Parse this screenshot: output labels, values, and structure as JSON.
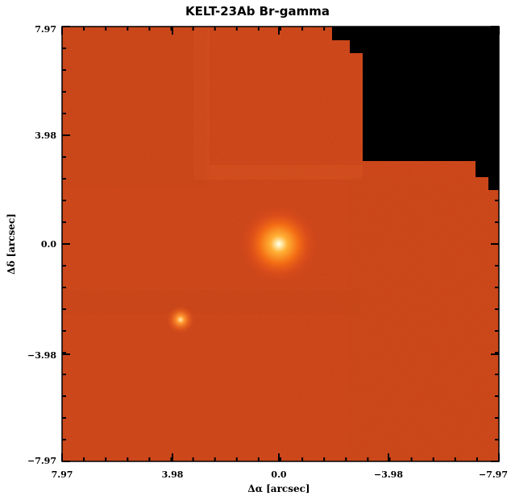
{
  "figure": {
    "title": "KELT-23Ab Br-gamma",
    "xlabel": "Δα [arcsec]",
    "ylabel": "Δδ [arcsec]"
  },
  "axes": {
    "x_ticks": [
      "7.97",
      "3.98",
      "0.0",
      "−3.98",
      "−7.97"
    ],
    "y_ticks": [
      "7.97",
      "3.98",
      "0.0",
      "−3.98",
      "−7.97"
    ],
    "x_range": [
      7.97,
      -7.97
    ],
    "y_range": [
      -7.97,
      7.97
    ]
  },
  "image": {
    "colormap": "red-orange-yellow (heat)",
    "sources": [
      {
        "name": "primary-star",
        "x": 0.0,
        "y": 0.0
      },
      {
        "name": "companion-source",
        "x": 3.6,
        "y": -2.75
      }
    ],
    "masked_region_color": "#000000"
  }
}
